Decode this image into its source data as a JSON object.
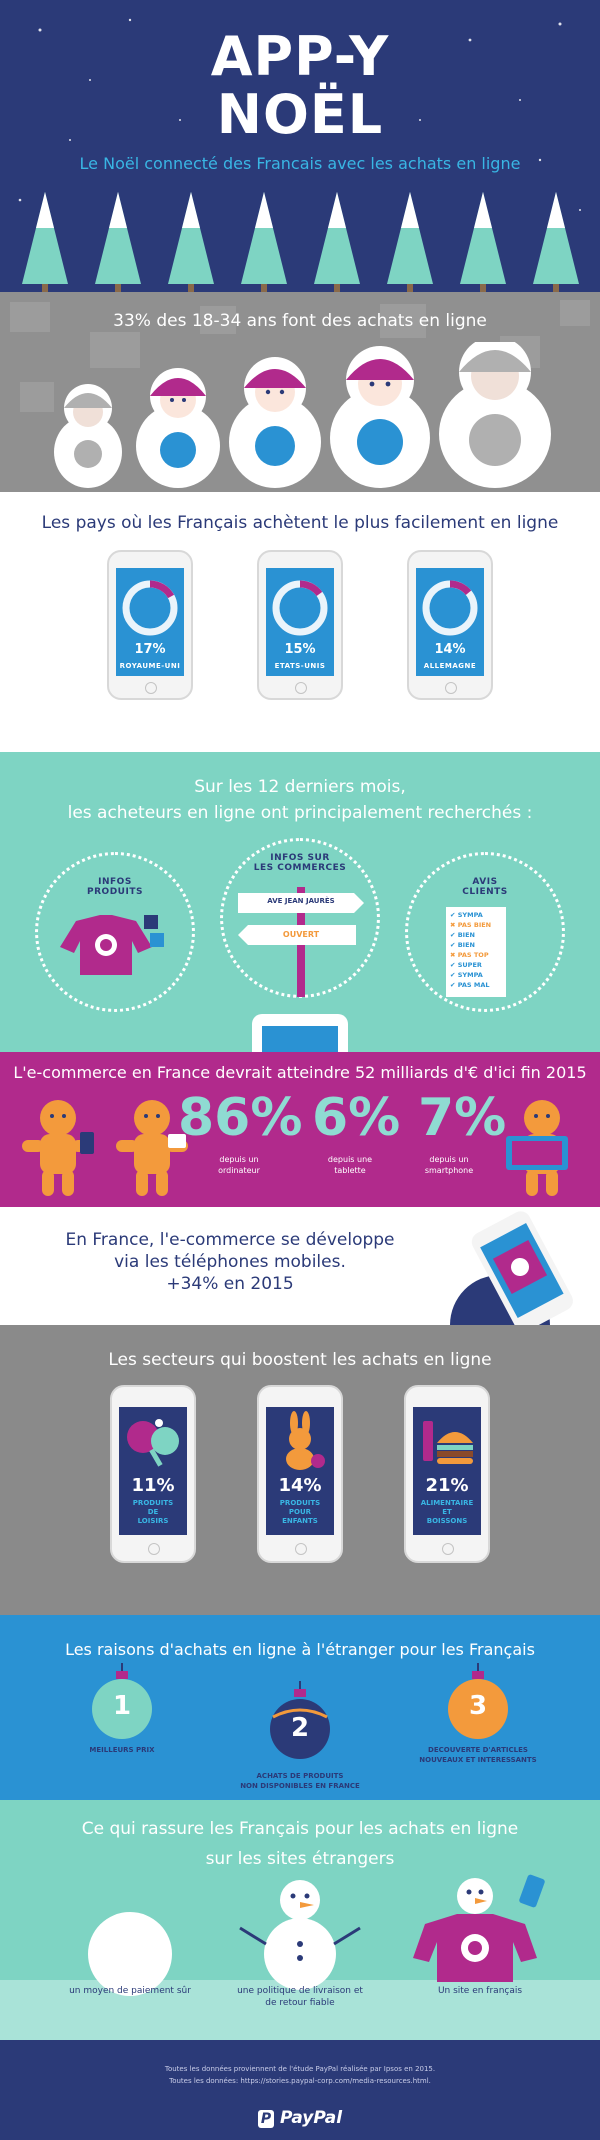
{
  "header": {
    "title_line1": "APP-Y",
    "title_line2": "NOËL",
    "subtitle": "Le Noël connecté des Francais avec les achats en ligne"
  },
  "dolls": {
    "title": "33% des 18-34 ans font des achats en ligne"
  },
  "countries": {
    "title": "Les pays où les Français achètent le plus facilement en ligne",
    "items": [
      {
        "value": "17%",
        "label": "ROYAUME-UNI",
        "fraction": 0.17
      },
      {
        "value": "15%",
        "label": "ETATS-UNIS",
        "fraction": 0.15
      },
      {
        "value": "14%",
        "label": "ALLEMAGNE",
        "fraction": 0.14
      }
    ]
  },
  "research": {
    "title_line1": "Sur les 12 derniers mois,",
    "title_line2": "les acheteurs en ligne ont principalement recherchés :",
    "infos_produits_1": "INFOS",
    "infos_produits_2": "PRODUITS",
    "infos_commerces_1": "INFOS SUR",
    "infos_commerces_2": "LES COMMERCES",
    "sign_street": "AVE JEAN JAURÈS",
    "sign_open": "OUVERT",
    "avis_1": "AVIS",
    "avis_2": "CLIENTS",
    "reviews": [
      {
        "text": "SYMPA",
        "mark": "check"
      },
      {
        "text": "PAS BIEN",
        "mark": "cross"
      },
      {
        "text": "BIEN",
        "mark": "check"
      },
      {
        "text": "BIEN",
        "mark": "check"
      },
      {
        "text": "PAS TOP",
        "mark": "cross"
      },
      {
        "text": "SUPER",
        "mark": "check"
      },
      {
        "text": "SYMPA",
        "mark": "check"
      },
      {
        "text": "PAS MAL",
        "mark": "check"
      }
    ]
  },
  "ecommerce": {
    "title": "L'e-commerce en France devrait atteindre 52 milliards d'€ d'ici fin 2015",
    "stats": [
      {
        "value": "86%",
        "label_1": "depuis un",
        "label_2": "ordinateur"
      },
      {
        "value": "6%",
        "label_1": "depuis une",
        "label_2": "tablette"
      },
      {
        "value": "7%",
        "label_1": "depuis un",
        "label_2": "smartphone"
      }
    ]
  },
  "mobile": {
    "line1": "En France, l'e-commerce se développe",
    "line2": "via les téléphones mobiles.",
    "line3": "+34% en 2015"
  },
  "sectors": {
    "title": "Les secteurs qui boostent les achats en ligne",
    "items": [
      {
        "value": "11%",
        "label_1": "PRODUITS",
        "label_2": "DE",
        "label_3": "LOISIRS"
      },
      {
        "value": "14%",
        "label_1": "PRODUITS",
        "label_2": "POUR",
        "label_3": "ENFANTS"
      },
      {
        "value": "21%",
        "label_1": "ALIMENTAIRE",
        "label_2": "ET",
        "label_3": "BOISSONS"
      }
    ]
  },
  "reasons": {
    "title": "Les raisons d'achats en ligne à l'étranger pour les Français",
    "items": [
      {
        "num": "1",
        "label_1": "MEILLEURS PRIX",
        "label_2": ""
      },
      {
        "num": "2",
        "label_1": "ACHATS DE PRODUITS",
        "label_2": "NON DISPONIBLES EN FRANCE"
      },
      {
        "num": "3",
        "label_1": "DECOUVERTE D'ARTICLES",
        "label_2": "NOUVEAUX ET INTERESSANTS"
      }
    ]
  },
  "reassure": {
    "title_line1": "Ce qui rassure les Français pour les achats en ligne",
    "title_line2": "sur les sites étrangers",
    "items": [
      {
        "label_1": "un moyen de paiement sûr",
        "label_2": ""
      },
      {
        "label_1": "une politique de livraison et",
        "label_2": "de retour fiable"
      },
      {
        "label_1": "Un site en français",
        "label_2": ""
      }
    ]
  },
  "footer": {
    "source_1": "Toutes les données proviennent de l'étude PayPal réalisée par Ipsos en 2015.",
    "source_2": "Toutes les données: https://stories.paypal-corp.com/media-resources.html.",
    "brand": "PayPal"
  },
  "colors": {
    "navy": "#2b3a78",
    "sky_blue": "#2a92d3",
    "teal": "#7ed4c3",
    "magenta": "#b12a8c",
    "grey": "#909090",
    "orange": "#f39a3c"
  },
  "icons": [
    "tree-icon",
    "matryoshka-icon",
    "phone-icon",
    "sweater-icon",
    "signpost-icon",
    "review-list-icon",
    "gingerbread-icon",
    "ornament-icon",
    "snowman-icon",
    "paypal-logo"
  ]
}
